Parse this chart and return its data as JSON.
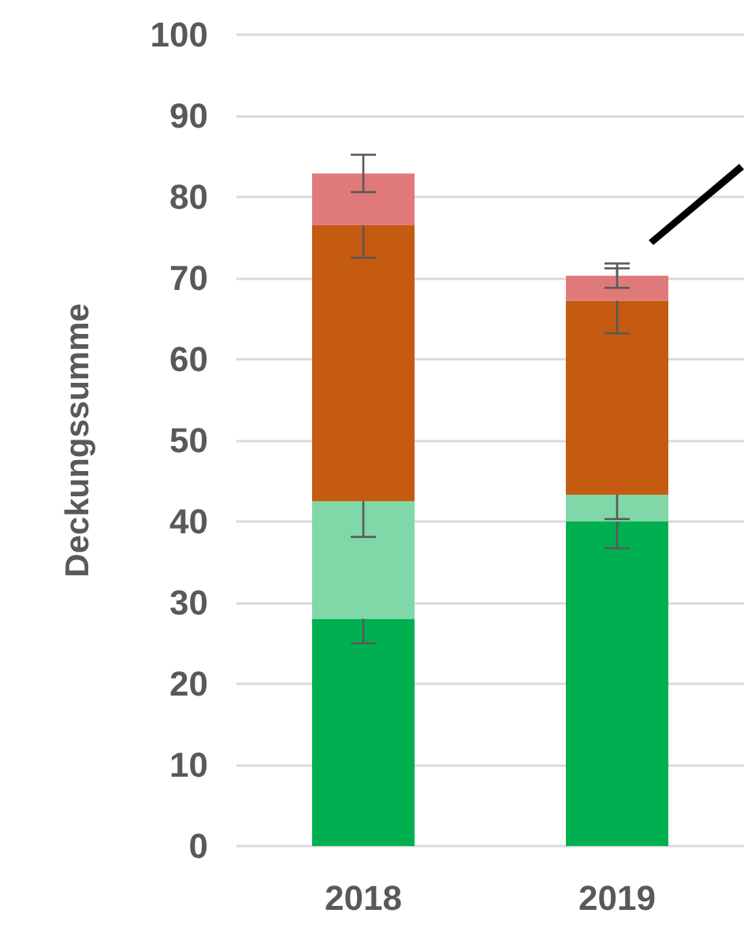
{
  "chart_data": {
    "type": "bar",
    "ylabel": "Deckungssumme",
    "categories": [
      "2018",
      "2019"
    ],
    "stacked": true,
    "ylim": [
      0,
      100
    ],
    "yticks": [
      0,
      10,
      20,
      30,
      40,
      50,
      60,
      70,
      80,
      90,
      100
    ],
    "grid": "y",
    "series": [
      {
        "color": "#00b050",
        "values": [
          28,
          40
        ],
        "errors": [
          3,
          3.3
        ]
      },
      {
        "color": "#80d7a7",
        "values": [
          14.5,
          3.3
        ],
        "errors": [
          4.4,
          3
        ]
      },
      {
        "color": "#c55a11",
        "values": [
          34,
          23.9
        ],
        "errors": [
          4,
          4
        ]
      },
      {
        "color": "#e07a7a",
        "values": [
          6.4,
          3.1
        ],
        "errors": [
          2.3,
          1.5
        ]
      }
    ]
  }
}
